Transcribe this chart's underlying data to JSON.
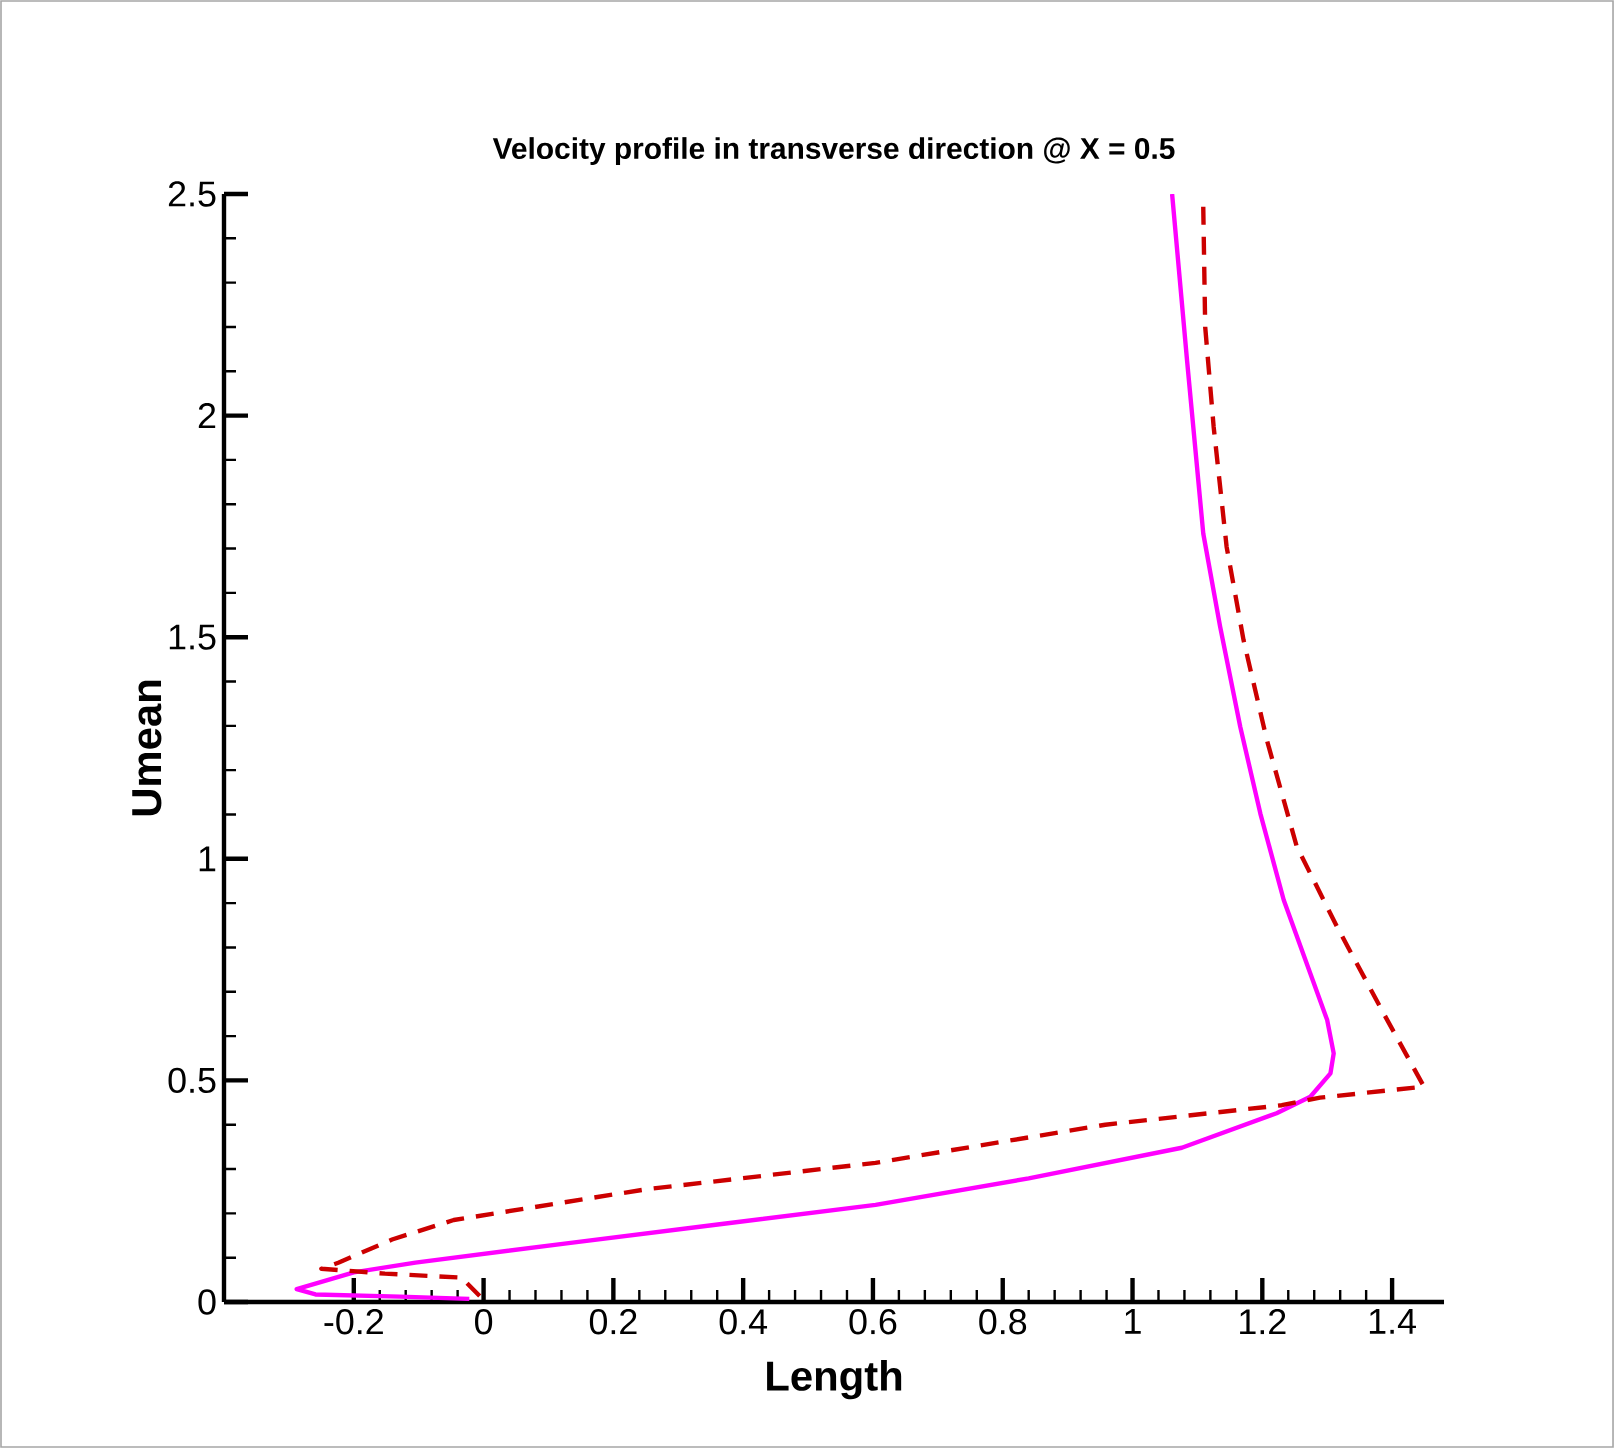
{
  "chart_data": {
    "type": "line",
    "title": "Velocity profile in transverse direction  @ X = 0.5",
    "xlabel": "Length",
    "ylabel": "Umean",
    "xlim": [
      -0.4,
      1.48
    ],
    "ylim": [
      0,
      2.5
    ],
    "xticks": [
      -0.2,
      0,
      0.2,
      0.4,
      0.6,
      0.8,
      1,
      1.2,
      1.4
    ],
    "yticks": [
      0,
      0.5,
      1,
      1.5,
      2,
      2.5
    ],
    "grid": false,
    "marker": "none",
    "series": [
      {
        "color": "#ff00ff",
        "line_style": "solid",
        "x": [
          1.061,
          1.084,
          1.109,
          1.135,
          1.166,
          1.197,
          1.233,
          1.274,
          1.3,
          1.31,
          1.305,
          1.274,
          1.222,
          1.076,
          0.84,
          0.604,
          0.367,
          0.131,
          -0.105,
          -0.2,
          -0.288,
          -0.259,
          -0.129,
          -0.022
        ],
        "values": [
          2.5,
          2.125,
          1.734,
          1.524,
          1.298,
          1.102,
          0.907,
          0.741,
          0.636,
          0.561,
          0.516,
          0.463,
          0.426,
          0.348,
          0.279,
          0.219,
          0.176,
          0.133,
          0.089,
          0.067,
          0.029,
          0.017,
          0.012,
          0.007
        ]
      },
      {
        "color": "#cc0000",
        "line_style": "dashed",
        "x": [
          1.109,
          1.112,
          1.125,
          1.145,
          1.171,
          1.207,
          1.253,
          1.315,
          1.387,
          1.449,
          1.289,
          1.23,
          0.958,
          0.604,
          0.249,
          -0.046,
          -0.141,
          -0.223,
          -0.25,
          -0.152,
          -0.034,
          -0.005
        ],
        "values": [
          2.471,
          2.2,
          1.975,
          1.704,
          1.494,
          1.268,
          1.028,
          0.847,
          0.651,
          0.486,
          0.461,
          0.444,
          0.4,
          0.314,
          0.254,
          0.185,
          0.141,
          0.089,
          0.075,
          0.064,
          0.055,
          0.012
        ]
      }
    ]
  }
}
